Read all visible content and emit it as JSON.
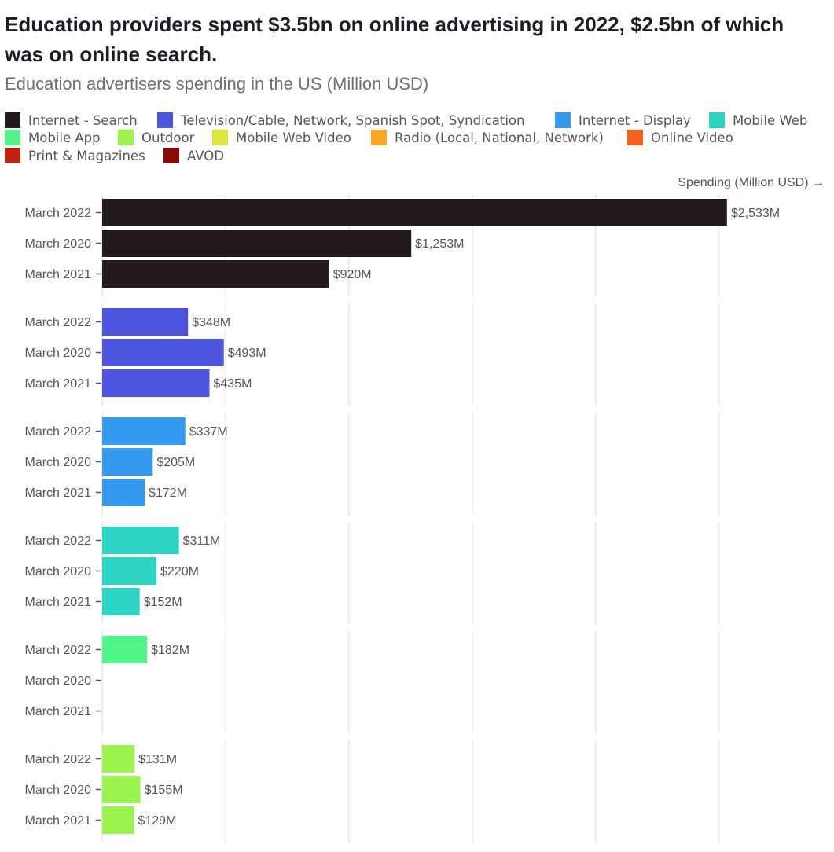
{
  "title": "Education providers spent $3.5bn on online advertising in 2022, $2.5bn of which was on online search.",
  "subtitle": "Education advertisers spending in the US (Million USD)",
  "legend": [
    {
      "label": "Internet - Search",
      "color": "#231a1d"
    },
    {
      "label": "Television/Cable, Network, Spanish Spot, Syndication",
      "color": "#4d55de"
    },
    {
      "label": "Internet - Display",
      "color": "#339af0"
    },
    {
      "label": "Mobile Web",
      "color": "#2dd4c4"
    },
    {
      "label": "Mobile App",
      "color": "#51f58a"
    },
    {
      "label": "Outdoor",
      "color": "#9cf54e"
    },
    {
      "label": "Mobile Web Video",
      "color": "#dde63a"
    },
    {
      "label": "Radio (Local, National, Network)",
      "color": "#fca62a"
    },
    {
      "label": "Online Video",
      "color": "#f7601e"
    },
    {
      "label": "Print & Magazines",
      "color": "#c2210f"
    },
    {
      "label": "AVOD",
      "color": "#8a0c05"
    }
  ],
  "x_axis_title": "Spending (Million USD) →",
  "chart_data": {
    "type": "bar",
    "orientation": "horizontal",
    "title": "Education providers spent $3.5bn on online advertising in 2022, $2.5bn of which was on online search.",
    "subtitle": "Education advertisers spending in the US (Million USD)",
    "xlabel": "Spending (Million USD) →",
    "ylabel": "",
    "xlim": [
      0,
      2900
    ],
    "grid": true,
    "legend_position": "top",
    "value_format": "$#M",
    "facets": [
      {
        "name": "Internet - Search",
        "color": "#231a1d",
        "categories": [
          "March 2022",
          "March 2020",
          "March 2021"
        ],
        "values": [
          2533,
          1253,
          920
        ]
      },
      {
        "name": "Television/Cable, Network, Spanish Spot, Syndication",
        "color": "#4d55de",
        "categories": [
          "March 2022",
          "March 2020",
          "March 2021"
        ],
        "values": [
          348,
          493,
          435
        ]
      },
      {
        "name": "Internet - Display",
        "color": "#339af0",
        "categories": [
          "March 2022",
          "March 2020",
          "March 2021"
        ],
        "values": [
          337,
          205,
          172
        ]
      },
      {
        "name": "Mobile Web",
        "color": "#2dd4c4",
        "categories": [
          "March 2022",
          "March 2020",
          "March 2021"
        ],
        "values": [
          311,
          220,
          152
        ]
      },
      {
        "name": "Mobile App",
        "color": "#51f58a",
        "categories": [
          "March 2022",
          "March 2020",
          "March 2021"
        ],
        "values": [
          182,
          null,
          null
        ]
      },
      {
        "name": "Outdoor",
        "color": "#9cf54e",
        "categories": [
          "March 2022",
          "March 2020",
          "March 2021"
        ],
        "values": [
          131,
          155,
          129
        ]
      }
    ]
  }
}
